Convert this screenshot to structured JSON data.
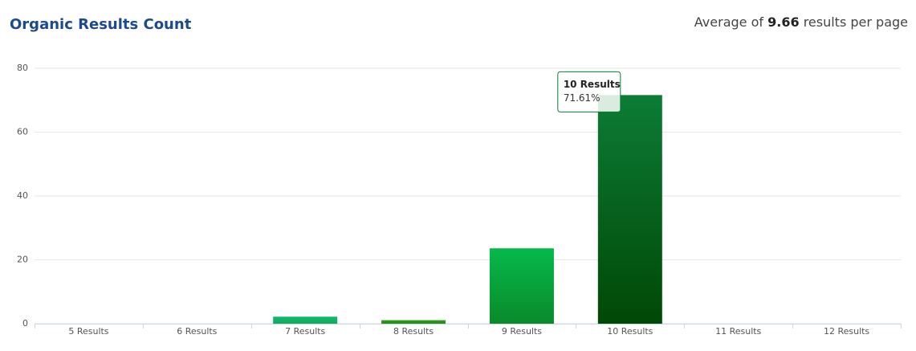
{
  "chart_data": {
    "type": "bar",
    "title": "Organic Results Count",
    "subtitle": [
      "Average of",
      "9.66",
      "results per page"
    ],
    "categories": [
      "5 Results",
      "6 Results",
      "7 Results",
      "8 Results",
      "9 Results",
      "10 Results",
      "11 Results",
      "12 Results"
    ],
    "values": [
      0,
      0,
      2.2,
      1.1,
      23.6,
      71.61,
      0,
      0
    ],
    "value_labels": [
      null,
      null,
      null,
      null,
      null,
      "71.61%",
      null,
      null
    ],
    "colors": [
      "#13b86a",
      "#13b86a",
      "#14bb6c",
      "#2f9e1c",
      "#05b94b",
      "#0c7c36",
      "#13b86a",
      "#13b86a"
    ],
    "colors_bottom": [
      "#0a8a4a",
      "#0a8a4a",
      "#0fa85e",
      "#238a14",
      "#0a8a2a",
      "#004805",
      "#0a8a4a",
      "#0a8a4a"
    ],
    "ylim": [
      0,
      80
    ],
    "yticks": [
      0,
      20,
      40,
      60,
      80
    ],
    "grid": true
  }
}
